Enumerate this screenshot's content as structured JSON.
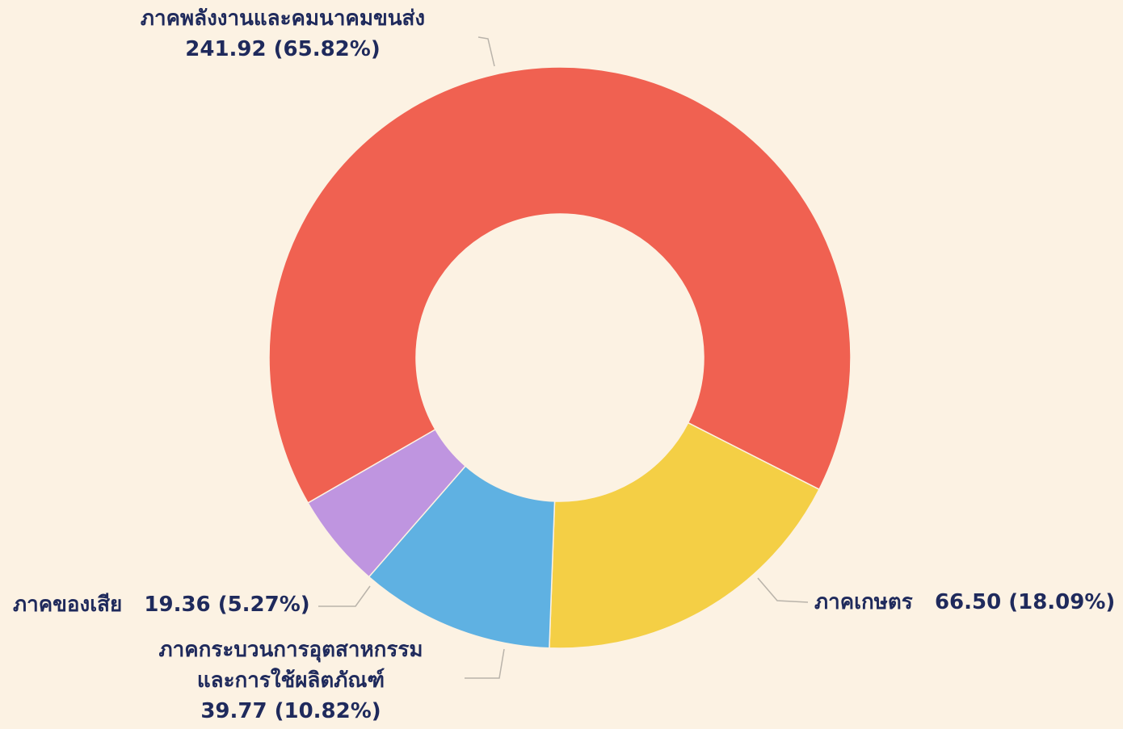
{
  "chart_data": {
    "type": "pie",
    "donut": true,
    "grid": false,
    "legend": "none",
    "title": "",
    "slices": [
      {
        "label_lines": [
          "ภาคพลังงานและคมนาคมขนส่ง"
        ],
        "value": 241.92,
        "percent": 65.82,
        "value_text": "241.92 (65.82%)",
        "color": "#f06151"
      },
      {
        "label_lines": [
          "ภาคเกษตร"
        ],
        "value": 66.5,
        "percent": 18.09,
        "value_text": "66.50 (18.09%)",
        "color": "#f4cf45"
      },
      {
        "label_lines": [
          "ภาคกระบวนการอุตสาหกรรม",
          "และการใช้ผลิตภัณฑ์"
        ],
        "value": 39.77,
        "percent": 10.82,
        "value_text": "39.77 (10.82%)",
        "color": "#5fb1e2"
      },
      {
        "label_lines": [
          "ภาคของเสีย"
        ],
        "value": 19.36,
        "percent": 5.27,
        "value_text": "19.36 (5.27%)",
        "color": "#bf95e0"
      }
    ]
  }
}
